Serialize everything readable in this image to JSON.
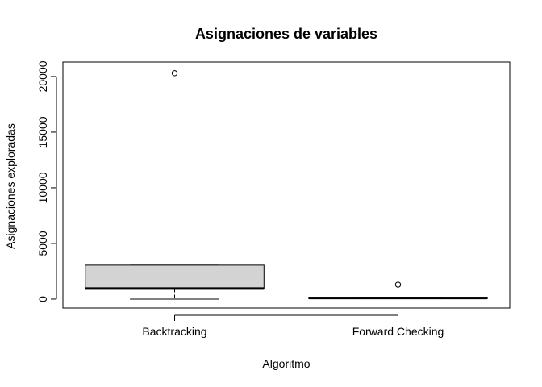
{
  "chart_data": {
    "type": "boxplot",
    "title": "Asignaciones de variables",
    "xlabel": "Algoritmo",
    "ylabel": "Asignaciones exploradas",
    "categories": [
      "Backtracking",
      "Forward Checking"
    ],
    "ylim": [
      -800,
      21300
    ],
    "yticks": [
      0,
      5000,
      10000,
      15000,
      20000
    ],
    "ytick_labels": [
      "0",
      "5000",
      "10000",
      "15000",
      "20000"
    ],
    "boxes": [
      {
        "category": "Backtracking",
        "whisker_low": 0,
        "q1": 900,
        "median": 950,
        "q3": 3050,
        "whisker_high": 3050,
        "outliers": [
          20300
        ]
      },
      {
        "category": "Forward Checking",
        "whisker_low": 60,
        "q1": 60,
        "median": 100,
        "q3": 160,
        "whisker_high": 160,
        "outliers": [
          1300
        ]
      }
    ],
    "box_fill": "#d3d3d3",
    "line_color": "#000000",
    "grid": false,
    "legend": "none"
  }
}
